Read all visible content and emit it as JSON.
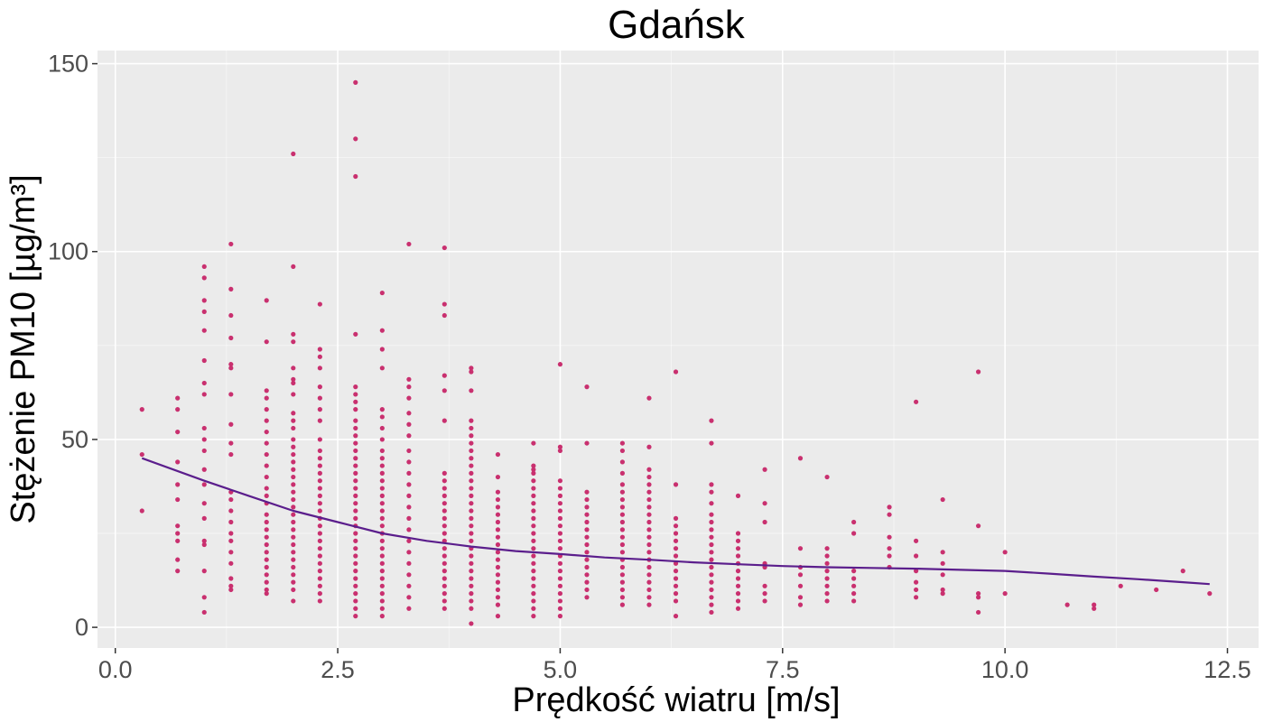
{
  "chart_data": {
    "type": "scatter",
    "title": "Gdańsk",
    "xlabel": "Prędkość wiatru [m/s]",
    "ylabel": "Stężenie PM10 [µg/m³]",
    "xlim": [
      -0.2,
      12.85
    ],
    "ylim": [
      -5.5,
      153.5
    ],
    "x_ticks": [
      "0.0",
      "2.5",
      "5.0",
      "7.5",
      "10.0",
      "12.5"
    ],
    "y_ticks": [
      "0",
      "50",
      "100",
      "150"
    ],
    "grid": true,
    "legend": "none",
    "colors": {
      "panel": "#ebebeb",
      "grid_major": "#ffffff",
      "point": "#c9306f",
      "trend": "#5b1e8c",
      "tick_text": "#4d4d4d",
      "tick_mark": "#333333"
    },
    "series": [
      {
        "kind": "points",
        "columns": [
          {
            "x": 0.3,
            "y": [
              58,
              46,
              31
            ]
          },
          {
            "x": 0.7,
            "y": [
              61,
              58,
              52,
              44,
              38,
              34,
              27,
              25,
              23,
              18,
              15
            ]
          },
          {
            "x": 1.0,
            "y": [
              96,
              93,
              87,
              84,
              79,
              71,
              65,
              62,
              53,
              50,
              47,
              42,
              38,
              33,
              29,
              23,
              22,
              15,
              8,
              4
            ]
          },
          {
            "x": 1.3,
            "y": [
              102,
              90,
              83,
              77,
              70,
              69,
              62,
              54,
              49,
              46,
              36,
              34,
              31,
              28,
              25,
              23,
              20,
              17,
              13,
              11,
              10
            ]
          },
          {
            "x": 1.7,
            "y": [
              87,
              76,
              63,
              61,
              58,
              55,
              52,
              49,
              46,
              43,
              40,
              37,
              35,
              33,
              30,
              28,
              26,
              24,
              22,
              20,
              18,
              16,
              14,
              12,
              10,
              9
            ]
          },
          {
            "x": 2.0,
            "y": [
              126,
              96,
              78,
              76,
              69,
              66,
              65,
              62,
              57,
              55,
              53,
              50,
              48,
              46,
              44,
              42,
              40,
              38,
              36,
              34,
              32,
              30,
              28,
              26,
              24,
              22,
              20,
              18,
              16,
              14,
              12,
              10,
              7
            ]
          },
          {
            "x": 2.3,
            "y": [
              86,
              74,
              72,
              69,
              64,
              61,
              58,
              55,
              50,
              47,
              45,
              43,
              41,
              39,
              37,
              35,
              33,
              31,
              29,
              27,
              25,
              23,
              21,
              19,
              17,
              15,
              13,
              11,
              9,
              7
            ]
          },
          {
            "x": 2.7,
            "y": [
              145,
              130,
              120,
              78,
              64,
              62,
              60,
              58,
              55,
              53,
              51,
              49,
              47,
              45,
              43,
              41,
              39,
              37,
              35,
              33,
              31,
              29,
              27,
              25,
              23,
              21,
              19,
              17,
              15,
              13,
              11,
              9,
              7,
              5,
              3
            ]
          },
          {
            "x": 3.0,
            "y": [
              89,
              79,
              74,
              69,
              58,
              56,
              53,
              50,
              47,
              45,
              43,
              41,
              39,
              37,
              35,
              33,
              31,
              29,
              27,
              25,
              23,
              21,
              19,
              17,
              15,
              13,
              11,
              9,
              7,
              5,
              3
            ]
          },
          {
            "x": 3.3,
            "y": [
              102,
              66,
              64,
              61,
              57,
              54,
              51,
              47,
              44,
              41,
              38,
              35,
              32,
              29,
              26,
              23,
              20,
              17,
              14,
              11,
              8,
              5
            ]
          },
          {
            "x": 3.7,
            "y": [
              101,
              86,
              83,
              67,
              63,
              55,
              41,
              39,
              37,
              35,
              33,
              31,
              29,
              27,
              25,
              23,
              21,
              19,
              17,
              15,
              13,
              11,
              9,
              7,
              5
            ]
          },
          {
            "x": 4.0,
            "y": [
              69,
              68,
              63,
              55,
              53,
              51,
              49,
              47,
              45,
              43,
              41,
              39,
              37,
              35,
              33,
              31,
              29,
              27,
              25,
              23,
              21,
              19,
              17,
              15,
              13,
              11,
              9,
              7,
              5,
              1
            ]
          },
          {
            "x": 4.3,
            "y": [
              46,
              40,
              36,
              34,
              32,
              30,
              28,
              26,
              24,
              22,
              20,
              18,
              16,
              14,
              12,
              10,
              8,
              6,
              3
            ]
          },
          {
            "x": 4.7,
            "y": [
              49,
              43,
              42,
              41,
              39,
              37,
              35,
              33,
              31,
              29,
              27,
              25,
              23,
              21,
              19,
              17,
              15,
              13,
              11,
              9,
              7,
              5,
              3
            ]
          },
          {
            "x": 5.0,
            "y": [
              70,
              48,
              47,
              39,
              37,
              35,
              33,
              31,
              29,
              27,
              25,
              23,
              21,
              19,
              17,
              15,
              13,
              11,
              9,
              7,
              5,
              3
            ]
          },
          {
            "x": 5.3,
            "y": [
              64,
              49,
              36,
              34,
              32,
              30,
              28,
              26,
              24,
              22,
              20,
              18,
              16,
              14,
              12,
              10,
              8
            ]
          },
          {
            "x": 5.7,
            "y": [
              49,
              47,
              44,
              41,
              38,
              36,
              34,
              32,
              30,
              28,
              26,
              24,
              22,
              20,
              18,
              16,
              14,
              12,
              10,
              8,
              6
            ]
          },
          {
            "x": 6.0,
            "y": [
              61,
              48,
              42,
              40,
              38,
              36,
              34,
              32,
              30,
              28,
              26,
              24,
              22,
              20,
              18,
              16,
              14,
              12,
              10,
              8,
              6
            ]
          },
          {
            "x": 6.3,
            "y": [
              68,
              38,
              29,
              27,
              25,
              23,
              21,
              19,
              17,
              15,
              13,
              11,
              9,
              7,
              3
            ]
          },
          {
            "x": 6.7,
            "y": [
              55,
              49,
              38,
              36,
              33,
              30,
              28,
              26,
              24,
              22,
              20,
              18,
              16,
              14,
              12,
              10,
              8,
              6,
              4
            ]
          },
          {
            "x": 7.0,
            "y": [
              35,
              25,
              23,
              21,
              19,
              17,
              15,
              13,
              11,
              9,
              7,
              5
            ]
          },
          {
            "x": 7.3,
            "y": [
              42,
              33,
              28,
              17,
              16,
              11,
              9,
              7
            ]
          },
          {
            "x": 7.7,
            "y": [
              45,
              21,
              16,
              14,
              11,
              8,
              6
            ]
          },
          {
            "x": 8.0,
            "y": [
              40,
              21,
              19,
              17,
              15,
              13,
              11,
              9,
              7
            ]
          },
          {
            "x": 8.3,
            "y": [
              28,
              25,
              15,
              13,
              11,
              9,
              7
            ]
          },
          {
            "x": 8.7,
            "y": [
              32,
              30,
              24,
              21,
              19,
              16
            ]
          },
          {
            "x": 9.0,
            "y": [
              60,
              23,
              19,
              15,
              12,
              10,
              8
            ]
          },
          {
            "x": 9.3,
            "y": [
              34,
              20,
              17,
              14,
              10,
              9
            ]
          },
          {
            "x": 9.7,
            "y": [
              68,
              27,
              9,
              8,
              4
            ]
          },
          {
            "x": 10.0,
            "y": [
              20,
              9
            ]
          },
          {
            "x": 10.7,
            "y": [
              6
            ]
          },
          {
            "x": 11.0,
            "y": [
              6,
              5
            ]
          },
          {
            "x": 11.3,
            "y": [
              11
            ]
          },
          {
            "x": 11.7,
            "y": [
              10
            ]
          },
          {
            "x": 12.0,
            "y": [
              15
            ]
          },
          {
            "x": 12.3,
            "y": [
              9
            ]
          }
        ]
      },
      {
        "kind": "smooth",
        "x": [
          0.3,
          1.0,
          1.5,
          2.0,
          2.5,
          3.0,
          3.5,
          4.0,
          4.5,
          5.0,
          5.5,
          6.0,
          6.5,
          7.0,
          7.5,
          8.0,
          8.5,
          9.0,
          9.5,
          10.0,
          10.5,
          11.0,
          11.5,
          12.0,
          12.3
        ],
        "y": [
          45,
          39,
          35,
          31,
          28,
          25,
          23,
          21.5,
          20.3,
          19.5,
          18.6,
          18,
          17.3,
          16.8,
          16.3,
          16,
          15.8,
          15.6,
          15.3,
          15,
          14.3,
          13.5,
          12.8,
          12,
          11.5
        ]
      }
    ]
  }
}
